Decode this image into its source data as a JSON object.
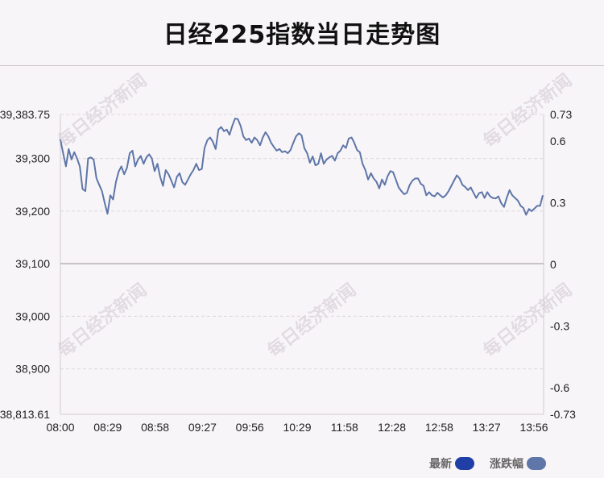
{
  "title": "日经225指数当日走势图",
  "legend": {
    "latest_label": "最新",
    "latest_color": "#1f3fa6",
    "change_label": "涨跌幅",
    "change_color": "#5e76a8"
  },
  "watermark": "每日经济新闻",
  "chart_data": {
    "type": "line",
    "xlabel": "",
    "ylabel": "",
    "x_ticks": [
      "08:00",
      "08:29",
      "08:58",
      "09:27",
      "09:56",
      "10:29",
      "11:58",
      "12:28",
      "12:58",
      "13:27",
      "13:56"
    ],
    "y_left_ticks": [
      "39,383.75",
      "39,300",
      "39,200",
      "39,100",
      "39,000",
      "38,900",
      "38,813.61"
    ],
    "y_left_tick_values": [
      39383.75,
      39300,
      39200,
      39100,
      39000,
      38900,
      38813.61
    ],
    "y_left_range": [
      38813.61,
      39383.75
    ],
    "y_right_ticks": [
      "0.73",
      "0.6",
      "0.3",
      "0",
      "-0.3",
      "-0.6",
      "-0.73"
    ],
    "y_right_tick_values": [
      0.73,
      0.6,
      0.3,
      0,
      -0.3,
      -0.6,
      -0.73
    ],
    "y_right_range": [
      -0.73,
      0.73
    ],
    "baseline": 39100,
    "line_color": "#5e76a8",
    "series": [
      {
        "values": [
          39336,
          39310,
          39285,
          39318,
          39298,
          39312,
          39300,
          39285,
          39242,
          39238,
          39300,
          39302,
          39298,
          39262,
          39250,
          39238,
          39215,
          39195,
          39230,
          39222,
          39255,
          39275,
          39285,
          39270,
          39282,
          39310,
          39315,
          39285,
          39298,
          39305,
          39290,
          39302,
          39308,
          39300,
          39276,
          39290,
          39265,
          39248,
          39278,
          39270,
          39258,
          39245,
          39265,
          39272,
          39255,
          39250,
          39260,
          39270,
          39278,
          39290,
          39278,
          39280,
          39320,
          39335,
          39340,
          39332,
          39318,
          39355,
          39360,
          39352,
          39355,
          39345,
          39362,
          39376,
          39375,
          39362,
          39342,
          39335,
          39338,
          39330,
          39340,
          39335,
          39325,
          39340,
          39350,
          39342,
          39330,
          39322,
          39315,
          39318,
          39312,
          39314,
          39310,
          39316,
          39330,
          39342,
          39348,
          39344,
          39320,
          39310,
          39292,
          39304,
          39287,
          39290,
          39310,
          39290,
          39298,
          39302,
          39305,
          39296,
          39310,
          39315,
          39325,
          39320,
          39338,
          39340,
          39330,
          39316,
          39312,
          39290,
          39278,
          39260,
          39272,
          39262,
          39256,
          39243,
          39260,
          39250,
          39266,
          39276,
          39274,
          39260,
          39245,
          39238,
          39232,
          39235,
          39250,
          39258,
          39262,
          39262,
          39252,
          39248,
          39230,
          39236,
          39230,
          39228,
          39235,
          39230,
          39226,
          39230,
          39238,
          39248,
          39258,
          39268,
          39262,
          39250,
          39246,
          39240,
          39245,
          39235,
          39225,
          39234,
          39236,
          39225,
          39236,
          39228,
          39225,
          39224,
          39228,
          39215,
          39208,
          39225,
          39240,
          39230,
          39225,
          39220,
          39210,
          39206,
          39193,
          39204,
          39200,
          39205,
          39210,
          39210,
          39230
        ]
      }
    ]
  }
}
